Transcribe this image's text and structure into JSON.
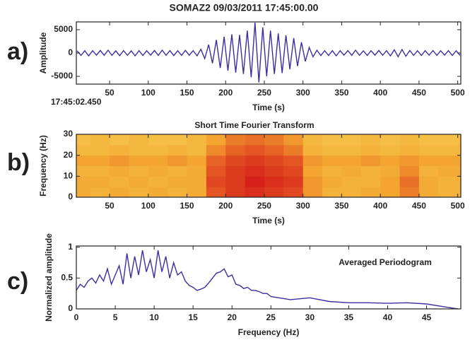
{
  "chart_data": [
    {
      "type": "line",
      "panel_label": "a)",
      "title": "SOMAZ2 09/03/2011 17:45:00.00",
      "xlabel": "Time (s)",
      "ylabel": "Amplitude",
      "annotation": "17:45:02.450",
      "xlim": [
        7,
        504
      ],
      "ylim": [
        -6667,
        6667
      ],
      "xticks": [
        50,
        100,
        150,
        200,
        250,
        300,
        350,
        400,
        450,
        500
      ],
      "yticks": [
        -5000,
        0,
        5000
      ],
      "x": [
        8,
        13,
        18,
        23,
        28,
        33,
        38,
        43,
        48,
        53,
        58,
        63,
        68,
        73,
        78,
        83,
        88,
        93,
        98,
        103,
        108,
        113,
        118,
        123,
        128,
        133,
        138,
        143,
        148,
        153,
        158,
        163,
        168,
        173,
        178,
        183,
        188,
        193,
        198,
        203,
        208,
        213,
        218,
        223,
        228,
        233,
        238,
        243,
        248,
        253,
        258,
        263,
        268,
        273,
        278,
        283,
        288,
        293,
        298,
        303,
        308,
        313,
        318,
        323,
        328,
        333,
        338,
        343,
        348,
        353,
        358,
        363,
        368,
        373,
        378,
        383,
        388,
        393,
        398,
        403,
        408,
        413,
        418,
        423,
        428,
        433,
        438,
        443,
        448,
        453,
        458,
        463,
        468,
        473,
        478,
        483,
        488,
        493,
        498,
        503
      ],
      "series": [
        {
          "color": "#3a2fa0",
          "values": [
            450,
            -520,
            480,
            -600,
            500,
            -450,
            550,
            -480,
            600,
            -500,
            470,
            -560,
            520,
            -480,
            450,
            -600,
            500,
            -520,
            480,
            -450,
            550,
            -500,
            600,
            -480,
            520,
            -550,
            480,
            -500,
            560,
            -470,
            500,
            -600,
            800,
            -1200,
            1800,
            -2200,
            2800,
            -3200,
            3500,
            -3800,
            4000,
            -4200,
            3900,
            -4500,
            4800,
            -5200,
            6500,
            -6300,
            5500,
            -5000,
            4800,
            -4500,
            4200,
            -4300,
            3800,
            -3500,
            3200,
            -2800,
            2300,
            -1800,
            1200,
            -800,
            600,
            -550,
            500,
            -520,
            480,
            -600,
            500,
            -450,
            520,
            -480,
            600,
            -500,
            470,
            -520,
            500,
            -450,
            550,
            -480,
            500,
            -600,
            700,
            -800,
            750,
            -700,
            550,
            -500,
            480,
            -520,
            500,
            -470,
            520,
            -500,
            480,
            -450,
            500,
            -520,
            480,
            -500
          ]
        }
      ]
    },
    {
      "type": "heatmap",
      "panel_label": "b)",
      "title": "Short Time Fourier Transform",
      "xlabel": "Time (s)",
      "ylabel": "Frequency (Hz)",
      "xlim": [
        7,
        504
      ],
      "ylim": [
        0,
        30
      ],
      "xticks": [
        50,
        100,
        150,
        200,
        250,
        300,
        350,
        400,
        450,
        500
      ],
      "yticks": [
        0,
        10,
        20,
        30
      ],
      "colormap": [
        "#f7e463",
        "#f3a530",
        "#d8201a"
      ],
      "xbins": [
        0,
        25,
        50,
        75,
        100,
        125,
        150,
        175,
        200,
        225,
        250,
        275,
        300,
        325,
        350,
        375,
        400,
        425,
        450,
        475,
        500,
        525
      ],
      "ybins": [
        0,
        5,
        10,
        15,
        20,
        25,
        30
      ],
      "z": [
        [
          0.45,
          0.4,
          0.45,
          0.4,
          0.45,
          0.4,
          0.45,
          0.8,
          0.9,
          0.95,
          0.9,
          0.85,
          0.55,
          0.4,
          0.4,
          0.45,
          0.5,
          0.65,
          0.45,
          0.4,
          0.4
        ],
        [
          0.45,
          0.45,
          0.4,
          0.45,
          0.4,
          0.45,
          0.45,
          0.85,
          0.9,
          1,
          0.95,
          0.9,
          0.55,
          0.45,
          0.4,
          0.4,
          0.5,
          0.7,
          0.45,
          0.4,
          0.4
        ],
        [
          0.4,
          0.4,
          0.45,
          0.4,
          0.45,
          0.4,
          0.45,
          0.8,
          0.9,
          0.95,
          0.9,
          0.85,
          0.5,
          0.4,
          0.45,
          0.4,
          0.45,
          0.6,
          0.4,
          0.45,
          0.45
        ],
        [
          0.5,
          0.5,
          0.55,
          0.5,
          0.5,
          0.55,
          0.5,
          0.75,
          0.85,
          0.9,
          0.85,
          0.8,
          0.55,
          0.5,
          0.5,
          0.55,
          0.5,
          0.55,
          0.5,
          0.5,
          0.5
        ],
        [
          0.35,
          0.35,
          0.4,
          0.35,
          0.35,
          0.4,
          0.35,
          0.6,
          0.75,
          0.8,
          0.75,
          0.65,
          0.4,
          0.35,
          0.35,
          0.4,
          0.35,
          0.4,
          0.35,
          0.35,
          0.35
        ],
        [
          0.3,
          0.35,
          0.3,
          0.35,
          0.3,
          0.3,
          0.35,
          0.5,
          0.65,
          0.7,
          0.65,
          0.55,
          0.35,
          0.3,
          0.3,
          0.35,
          0.3,
          0.35,
          0.3,
          0.3,
          0.3
        ]
      ]
    },
    {
      "type": "line",
      "panel_label": "c)",
      "xlabel": "Frequency (Hz)",
      "ylabel": "Normalized amplitude",
      "annotation": "Averaged Periodogram",
      "xlim": [
        0,
        49.4
      ],
      "ylim": [
        0,
        1.02
      ],
      "xticks": [
        0,
        5,
        10,
        15,
        20,
        25,
        30,
        35,
        40,
        45
      ],
      "yticks": [
        0,
        0.5,
        1
      ],
      "x": [
        0,
        0.5,
        1,
        1.5,
        2,
        2.5,
        3,
        3.5,
        4,
        4.5,
        5,
        5.5,
        6,
        6.5,
        7,
        7.5,
        8,
        8.5,
        9,
        9.5,
        10,
        10.5,
        11,
        11.5,
        12,
        12.5,
        13,
        13.5,
        14,
        14.5,
        15,
        15.5,
        16,
        16.5,
        17,
        17.5,
        18,
        18.5,
        19,
        19.5,
        20,
        20.5,
        21,
        21.5,
        22,
        22.5,
        23,
        23.5,
        24,
        24.5,
        25,
        27.5,
        30,
        32.5,
        35,
        37.5,
        40,
        42.5,
        45,
        47.5,
        49
      ],
      "series": [
        {
          "color": "#3a2fa0",
          "values": [
            0.3,
            0.4,
            0.35,
            0.45,
            0.5,
            0.42,
            0.55,
            0.45,
            0.65,
            0.4,
            0.55,
            0.7,
            0.4,
            0.9,
            0.5,
            0.85,
            0.55,
            0.95,
            0.6,
            0.8,
            0.5,
            0.95,
            0.6,
            0.85,
            0.5,
            0.75,
            0.55,
            0.6,
            0.45,
            0.38,
            0.35,
            0.3,
            0.32,
            0.35,
            0.42,
            0.5,
            0.58,
            0.6,
            0.65,
            0.52,
            0.55,
            0.4,
            0.38,
            0.33,
            0.35,
            0.3,
            0.3,
            0.28,
            0.25,
            0.25,
            0.2,
            0.15,
            0.18,
            0.12,
            0.1,
            0.1,
            0.09,
            0.1,
            0.08,
            0.03,
            0
          ]
        }
      ]
    }
  ]
}
